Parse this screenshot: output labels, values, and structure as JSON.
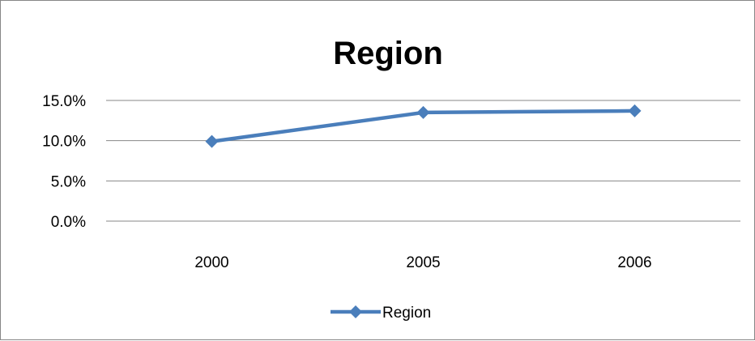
{
  "chart_data": {
    "type": "line",
    "title": "Region",
    "xlabel": "",
    "ylabel": "",
    "categories": [
      "2000",
      "2005",
      "2006"
    ],
    "series": [
      {
        "name": "Region",
        "values": [
          0.099,
          0.135,
          0.137
        ]
      }
    ],
    "ylim": [
      0,
      0.15
    ],
    "yticks": [
      {
        "value": 0.15,
        "label": "15.0%"
      },
      {
        "value": 0.1,
        "label": "10.0%"
      },
      {
        "value": 0.05,
        "label": "5.0%"
      },
      {
        "value": 0.0,
        "label": "0.0%"
      }
    ],
    "grid": true,
    "legend": "bottom",
    "colors": {
      "series": "#4a7ebb",
      "grid": "#878787",
      "border": "#878787"
    }
  }
}
